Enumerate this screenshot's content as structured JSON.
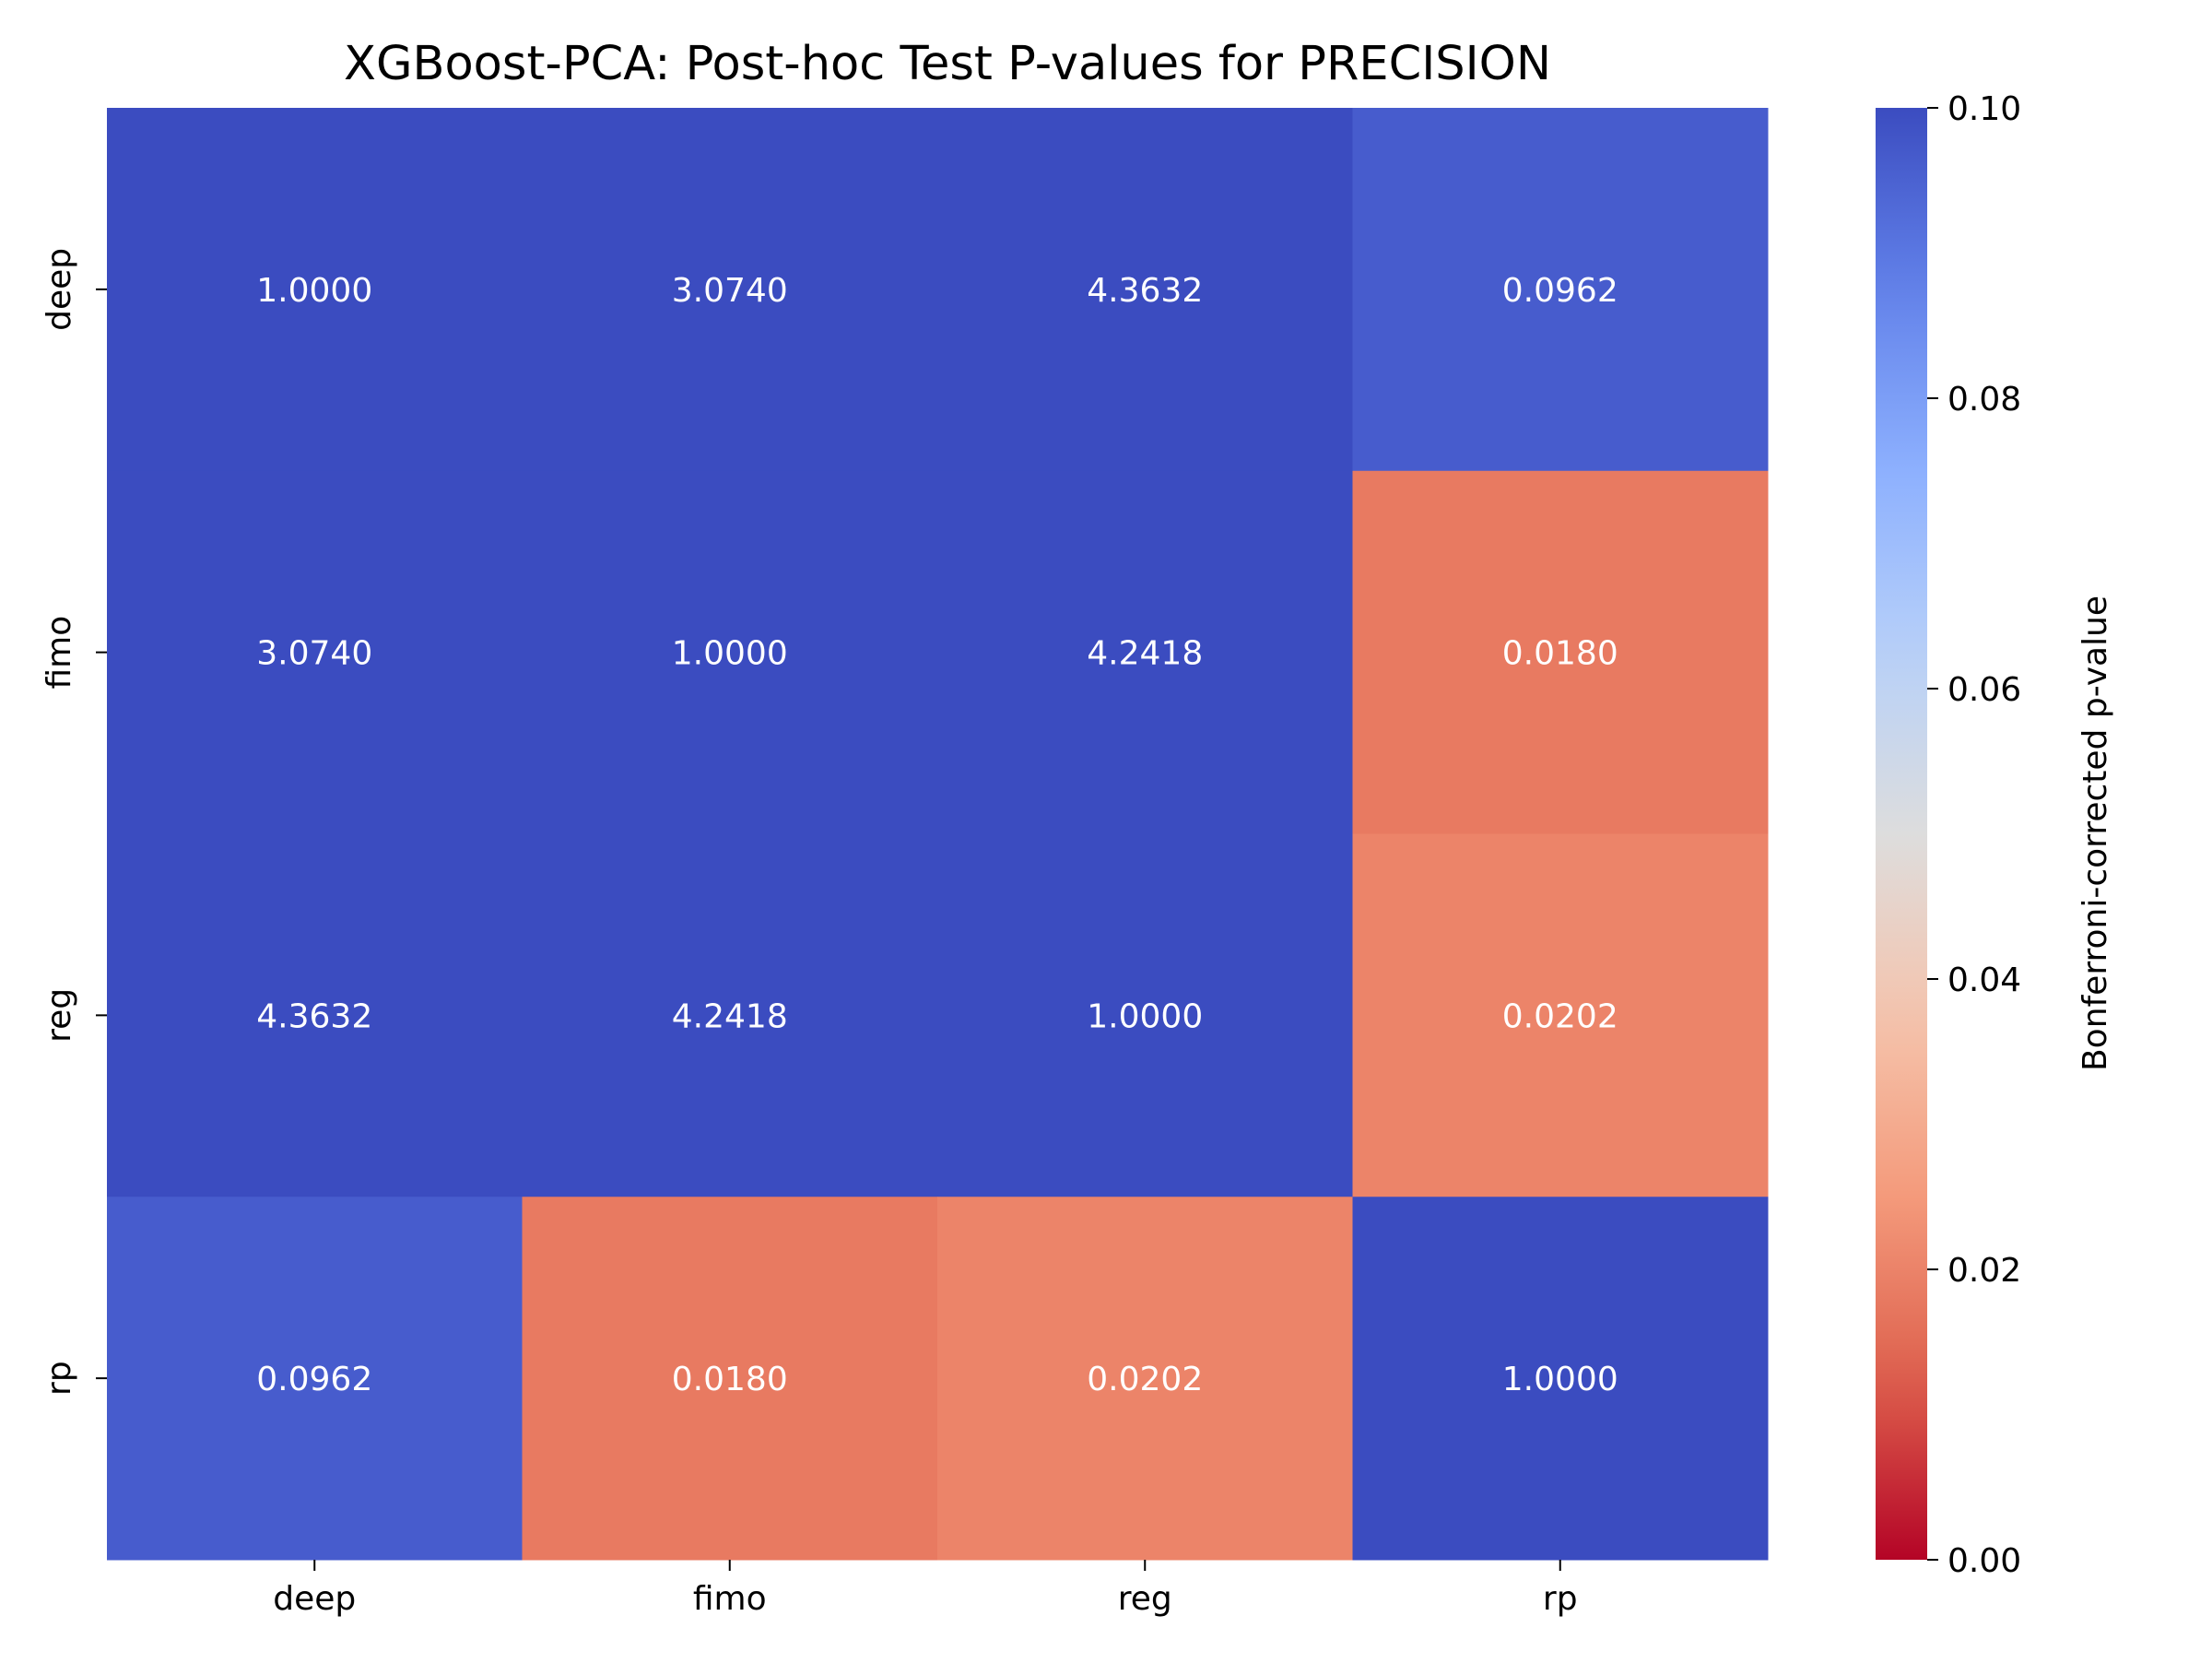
{
  "chart_data": {
    "type": "heatmap",
    "title": "XGBoost-PCA: Post-hoc Test P-values for PRECISION",
    "x_categories": [
      "deep",
      "fimo",
      "reg",
      "rp"
    ],
    "y_categories": [
      "deep",
      "fimo",
      "reg",
      "rp"
    ],
    "values": [
      [
        1.0,
        3.074,
        4.3632,
        0.0962
      ],
      [
        3.074,
        1.0,
        4.2418,
        0.018
      ],
      [
        4.3632,
        4.2418,
        1.0,
        0.0202
      ],
      [
        0.0962,
        0.018,
        0.0202,
        1.0
      ]
    ],
    "value_labels": [
      [
        "1.0000",
        "3.0740",
        "4.3632",
        "0.0962"
      ],
      [
        "3.0740",
        "1.0000",
        "4.2418",
        "0.0180"
      ],
      [
        "4.3632",
        "4.2418",
        "1.0000",
        "0.0202"
      ],
      [
        "0.0962",
        "0.0180",
        "0.0202",
        "1.0000"
      ]
    ],
    "colormap": "coolwarm_r",
    "vmin": 0,
    "vmax": 0.1,
    "colorbar": {
      "label": "Bonferroni-corrected p-value",
      "ticks": [
        0.0,
        0.02,
        0.04,
        0.06,
        0.08,
        0.1
      ],
      "tick_labels": [
        "0.00",
        "0.02",
        "0.04",
        "0.06",
        "0.08",
        "0.10"
      ],
      "position": "right"
    },
    "annotation_color": "#ffffff"
  }
}
